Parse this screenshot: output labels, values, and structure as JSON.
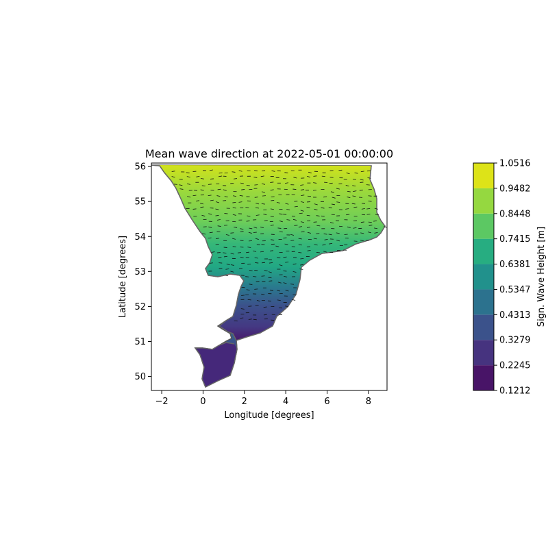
{
  "chart_data": {
    "type": "heatmap",
    "title": "Mean wave direction at 2022-05-01 00:00:00",
    "xlabel": "Longitude [degrees]",
    "ylabel": "Latitude [degrees]",
    "xlim": [
      -2.5,
      8.9
    ],
    "ylim": [
      49.6,
      56.1
    ],
    "x_ticks": [
      {
        "value": -2,
        "label": "−2"
      },
      {
        "value": 0,
        "label": "0"
      },
      {
        "value": 2,
        "label": "2"
      },
      {
        "value": 4,
        "label": "4"
      },
      {
        "value": 6,
        "label": "6"
      },
      {
        "value": 8,
        "label": "8"
      }
    ],
    "y_ticks": [
      {
        "value": 50,
        "label": "50"
      },
      {
        "value": 51,
        "label": "51"
      },
      {
        "value": 52,
        "label": "52"
      },
      {
        "value": 53,
        "label": "53"
      },
      {
        "value": 54,
        "label": "54"
      },
      {
        "value": 55,
        "label": "55"
      },
      {
        "value": 56,
        "label": "56"
      }
    ],
    "grid": false,
    "colorbar": {
      "label": "Sign. Wave Height [m]",
      "levels": [
        0.1212,
        0.2245,
        0.3279,
        0.4313,
        0.5347,
        0.6381,
        0.7415,
        0.8448,
        0.9482,
        1.0516
      ],
      "tick_labels": [
        "0.1212",
        "0.2245",
        "0.3279",
        "0.4313",
        "0.5347",
        "0.6381",
        "0.7415",
        "0.8448",
        "0.9482",
        "1.0516"
      ],
      "colors": [
        "#481467",
        "#46337f",
        "#3b528b",
        "#2c728e",
        "#21918c",
        "#27ad81",
        "#5cc863",
        "#95d840",
        "#dde318"
      ],
      "placement": "right"
    },
    "annotations": "black arrows indicating mean wave direction over the sea region"
  }
}
